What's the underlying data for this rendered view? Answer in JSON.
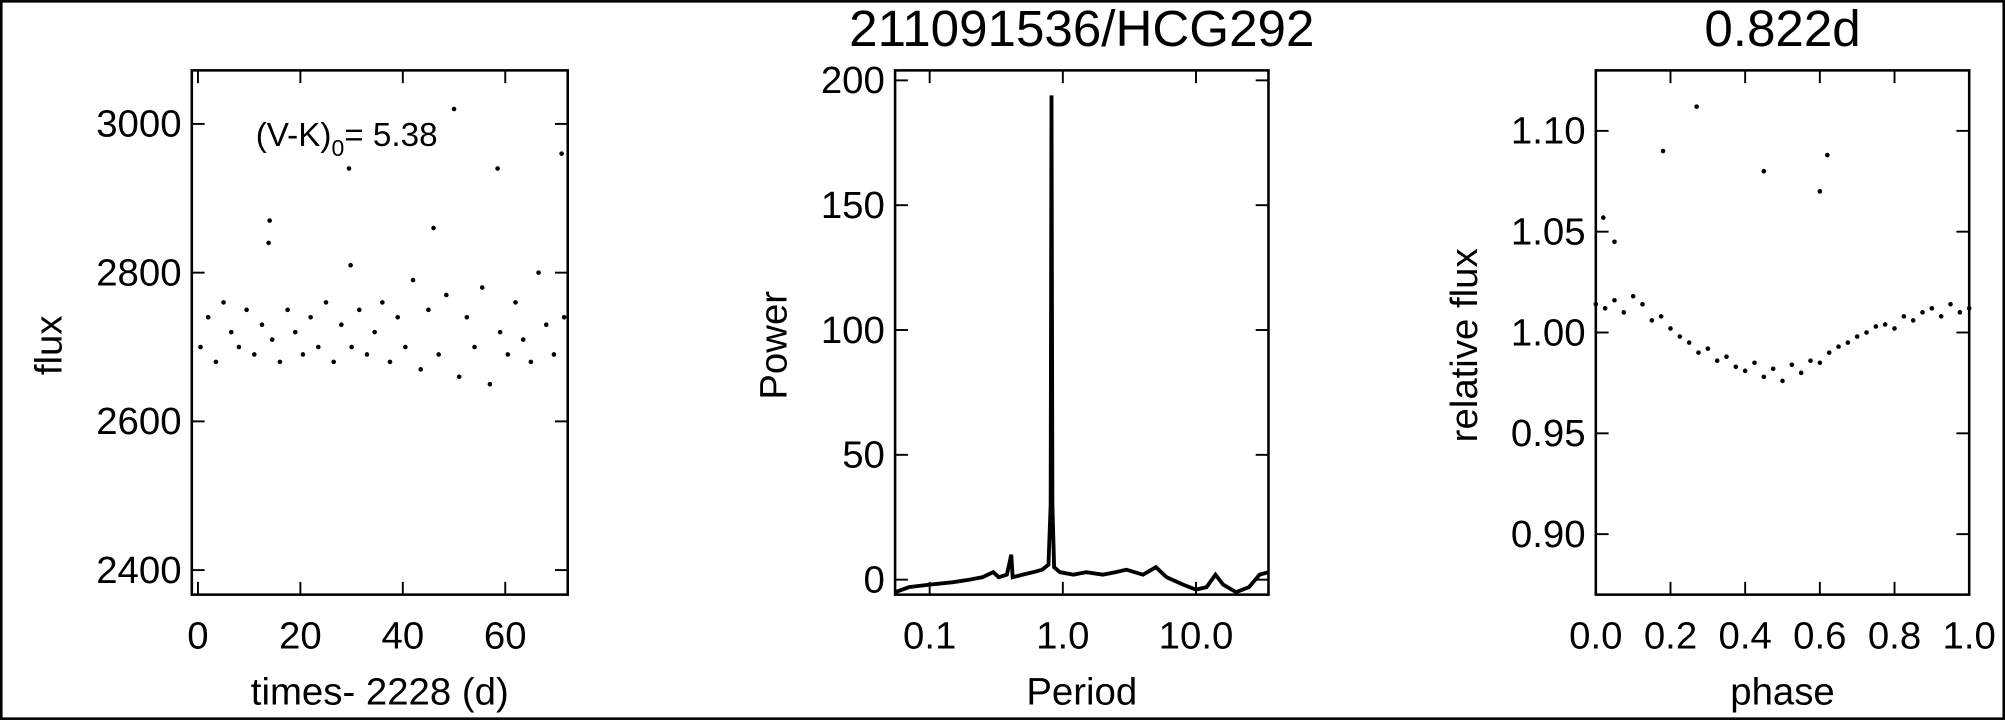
{
  "chart_data": [
    {
      "type": "scatter",
      "xlabel": "times- 2228 (d)",
      "ylabel": "flux",
      "annotation_parts": [
        "(V-K)",
        "0",
        "= 5.38"
      ],
      "xlim": [
        -1.2,
        72.2
      ],
      "ylim": [
        2367,
        3072
      ],
      "xticks": [
        0,
        20,
        40,
        60
      ],
      "yticks": [
        2400,
        2600,
        2800,
        3000
      ],
      "color": "#000000",
      "x": [
        0.5,
        2,
        3.5,
        5,
        6.5,
        8,
        9.5,
        11,
        12.5,
        13.8,
        14,
        14.5,
        16,
        17.5,
        19,
        20.5,
        22,
        23.5,
        25,
        26.5,
        28,
        29.5,
        29.8,
        30,
        31.5,
        33,
        34.5,
        36,
        37.5,
        39,
        40.5,
        42,
        43.5,
        45,
        46,
        47,
        48.5,
        50,
        51,
        52.5,
        54,
        55.5,
        57,
        58.5,
        59,
        60.5,
        62,
        63.5,
        65,
        66.5,
        68,
        69.5,
        71,
        71.5
      ],
      "values": [
        2700,
        2740,
        2680,
        2760,
        2720,
        2700,
        2750,
        2690,
        2730,
        2840,
        2870,
        2710,
        2680,
        2750,
        2720,
        2690,
        2740,
        2700,
        2760,
        2680,
        2730,
        2940,
        2810,
        2700,
        2750,
        2690,
        2720,
        2760,
        2680,
        2740,
        2700,
        2790,
        2670,
        2750,
        2860,
        2690,
        2770,
        3020,
        2660,
        2740,
        2700,
        2780,
        2650,
        2940,
        2720,
        2690,
        2760,
        2710,
        2680,
        2800,
        2730,
        2690,
        2960,
        2740
      ]
    },
    {
      "type": "line",
      "title": "211091536/HCG292",
      "xlabel": "Period",
      "ylabel": "Power",
      "xscale": "log",
      "xlim": [
        0.055,
        35
      ],
      "ylim": [
        -6,
        204
      ],
      "xticks": [
        0.1,
        {
          "value": 1,
          "label": "1.0"
        },
        {
          "value": 10,
          "label": "10.0"
        }
      ],
      "yticks": [
        0,
        50,
        100,
        150,
        200
      ],
      "color": "#000000",
      "x": [
        0.055,
        0.07,
        0.1,
        0.15,
        0.2,
        0.25,
        0.3,
        0.33,
        0.38,
        0.41,
        0.42,
        0.5,
        0.6,
        0.7,
        0.78,
        0.81,
        0.822,
        0.835,
        0.86,
        0.95,
        1.2,
        1.5,
        2,
        2.5,
        3,
        4,
        5,
        6,
        8,
        10,
        12,
        14,
        16,
        20,
        25,
        30,
        35
      ],
      "values": [
        -5,
        -3,
        -2,
        -1,
        0,
        1,
        3,
        1,
        2,
        10,
        1,
        2,
        3,
        4,
        6,
        30,
        194,
        30,
        5,
        3,
        2,
        3,
        2,
        3,
        4,
        2,
        5,
        1,
        -2,
        -4,
        -3,
        2,
        -2,
        -5,
        -3,
        2,
        3
      ]
    },
    {
      "type": "scatter",
      "title": "0.822d",
      "xlabel": "phase",
      "ylabel": "relative flux",
      "xlim": [
        0,
        1
      ],
      "ylim": [
        0.87,
        1.13
      ],
      "xticks": [
        {
          "value": 0,
          "label": "0.0"
        },
        0.2,
        0.4,
        0.6,
        0.8,
        {
          "value": 1,
          "label": "1.0"
        }
      ],
      "yticks": [
        {
          "value": 0.9,
          "label": "0.90"
        },
        0.95,
        {
          "value": 1,
          "label": "1.00"
        },
        1.05,
        {
          "value": 1.1,
          "label": "1.10"
        }
      ],
      "color": "#000000",
      "x": [
        0.0,
        0.02,
        0.025,
        0.05,
        0.05,
        0.075,
        0.1,
        0.125,
        0.15,
        0.175,
        0.18,
        0.2,
        0.225,
        0.25,
        0.27,
        0.275,
        0.3,
        0.325,
        0.35,
        0.375,
        0.4,
        0.425,
        0.45,
        0.45,
        0.475,
        0.5,
        0.525,
        0.55,
        0.575,
        0.6,
        0.6,
        0.62,
        0.625,
        0.65,
        0.675,
        0.7,
        0.725,
        0.75,
        0.775,
        0.8,
        0.825,
        0.85,
        0.875,
        0.9,
        0.925,
        0.95,
        0.975,
        1.0
      ],
      "values": [
        1.014,
        1.057,
        1.012,
        1.045,
        1.016,
        1.01,
        1.018,
        1.014,
        1.006,
        1.008,
        1.09,
        1.002,
        0.998,
        0.995,
        1.112,
        0.99,
        0.992,
        0.986,
        0.988,
        0.983,
        0.981,
        0.985,
        1.08,
        0.978,
        0.982,
        0.976,
        0.984,
        0.98,
        0.986,
        1.07,
        0.985,
        1.088,
        0.99,
        0.993,
        0.995,
        0.998,
        1.0,
        1.003,
        1.004,
        1.002,
        1.008,
        1.006,
        1.01,
        1.012,
        1.008,
        1.014,
        1.01,
        1.012
      ]
    }
  ]
}
